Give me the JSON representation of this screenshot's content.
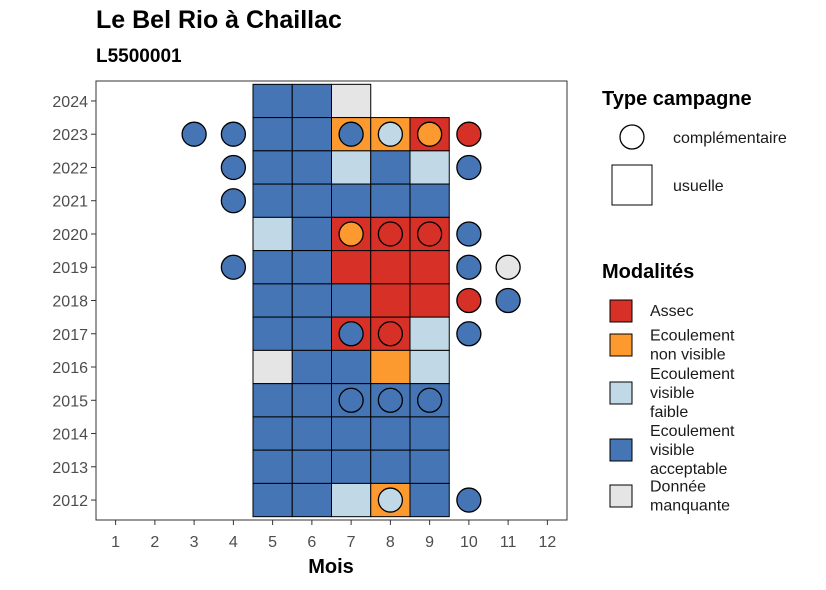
{
  "chart_data": {
    "type": "heatmap",
    "title": "Le Bel Rio à Chaillac",
    "subtitle": "L5500001",
    "xlabel": "Mois",
    "ylabel": "",
    "x_ticks": [
      1,
      2,
      3,
      4,
      5,
      6,
      7,
      8,
      9,
      10,
      11,
      12
    ],
    "y_ticks": [
      2012,
      2013,
      2014,
      2015,
      2016,
      2017,
      2018,
      2019,
      2020,
      2021,
      2022,
      2023,
      2024
    ],
    "xlim": [
      0.5,
      12.5
    ],
    "ylim": [
      2011.4,
      2024.6
    ],
    "grid": false,
    "legend_position": "right",
    "colors": {
      "Assec": "#d73027",
      "Ecoulement non visible": "#fd9a2f",
      "Ecoulement visible faible": "#c1d9e6",
      "Ecoulement visible acceptable": "#4575b4",
      "Donnée manquante": "#e5e5e5"
    },
    "legend_type": {
      "title": "Type campagne",
      "items": [
        {
          "label": "complémentaire",
          "shape": "circle"
        },
        {
          "label": "usuelle",
          "shape": "square"
        }
      ]
    },
    "legend_modalites": {
      "title": "Modalités",
      "items": [
        {
          "key": "Assec",
          "lines": [
            "Assec"
          ]
        },
        {
          "key": "Ecoulement non visible",
          "lines": [
            "Ecoulement",
            "non visible"
          ]
        },
        {
          "key": "Ecoulement visible faible",
          "lines": [
            "Ecoulement",
            "visible",
            "faible"
          ]
        },
        {
          "key": "Ecoulement visible acceptable",
          "lines": [
            "Ecoulement",
            "visible",
            "acceptable"
          ]
        },
        {
          "key": "Donnée manquante",
          "lines": [
            "Donnée",
            "manquante"
          ]
        }
      ]
    },
    "usuelle": [
      {
        "year": 2024,
        "months": [
          5,
          6,
          7
        ],
        "values": [
          "Ecoulement visible acceptable",
          "Ecoulement visible acceptable",
          "Donnée manquante"
        ]
      },
      {
        "year": 2023,
        "months": [
          5,
          6,
          7,
          8,
          9
        ],
        "values": [
          "Ecoulement visible acceptable",
          "Ecoulement visible acceptable",
          "Ecoulement non visible",
          "Ecoulement non visible",
          "Assec"
        ]
      },
      {
        "year": 2022,
        "months": [
          5,
          6,
          7,
          8,
          9
        ],
        "values": [
          "Ecoulement visible acceptable",
          "Ecoulement visible acceptable",
          "Ecoulement visible faible",
          "Ecoulement visible acceptable",
          "Ecoulement visible faible"
        ]
      },
      {
        "year": 2021,
        "months": [
          5,
          6,
          7,
          8,
          9
        ],
        "values": [
          "Ecoulement visible acceptable",
          "Ecoulement visible acceptable",
          "Ecoulement visible acceptable",
          "Ecoulement visible acceptable",
          "Ecoulement visible acceptable"
        ]
      },
      {
        "year": 2020,
        "months": [
          5,
          6,
          7,
          8,
          9
        ],
        "values": [
          "Ecoulement visible faible",
          "Ecoulement visible acceptable",
          "Assec",
          "Assec",
          "Assec"
        ]
      },
      {
        "year": 2019,
        "months": [
          5,
          6,
          7,
          8,
          9
        ],
        "values": [
          "Ecoulement visible acceptable",
          "Ecoulement visible acceptable",
          "Assec",
          "Assec",
          "Assec"
        ]
      },
      {
        "year": 2018,
        "months": [
          5,
          6,
          7,
          8,
          9
        ],
        "values": [
          "Ecoulement visible acceptable",
          "Ecoulement visible acceptable",
          "Ecoulement visible acceptable",
          "Assec",
          "Assec"
        ]
      },
      {
        "year": 2017,
        "months": [
          5,
          6,
          7,
          8,
          9
        ],
        "values": [
          "Ecoulement visible acceptable",
          "Ecoulement visible acceptable",
          "Assec",
          "Assec",
          "Ecoulement visible faible"
        ]
      },
      {
        "year": 2016,
        "months": [
          5,
          6,
          7,
          8,
          9
        ],
        "values": [
          "Donnée manquante",
          "Ecoulement visible acceptable",
          "Ecoulement visible acceptable",
          "Ecoulement non visible",
          "Ecoulement visible faible"
        ]
      },
      {
        "year": 2015,
        "months": [
          5,
          6,
          7,
          8,
          9
        ],
        "values": [
          "Ecoulement visible acceptable",
          "Ecoulement visible acceptable",
          "Ecoulement visible acceptable",
          "Ecoulement visible acceptable",
          "Ecoulement visible acceptable"
        ]
      },
      {
        "year": 2014,
        "months": [
          5,
          6,
          7,
          8,
          9
        ],
        "values": [
          "Ecoulement visible acceptable",
          "Ecoulement visible acceptable",
          "Ecoulement visible acceptable",
          "Ecoulement visible acceptable",
          "Ecoulement visible acceptable"
        ]
      },
      {
        "year": 2013,
        "months": [
          5,
          6,
          7,
          8,
          9
        ],
        "values": [
          "Ecoulement visible acceptable",
          "Ecoulement visible acceptable",
          "Ecoulement visible acceptable",
          "Ecoulement visible acceptable",
          "Ecoulement visible acceptable"
        ]
      },
      {
        "year": 2012,
        "months": [
          5,
          6,
          7,
          8,
          9
        ],
        "values": [
          "Ecoulement visible acceptable",
          "Ecoulement visible acceptable",
          "Ecoulement visible faible",
          "Ecoulement non visible",
          "Ecoulement visible acceptable"
        ]
      }
    ],
    "complementaire": [
      {
        "year": 2023,
        "month": 3,
        "value": "Ecoulement visible acceptable"
      },
      {
        "year": 2023,
        "month": 4,
        "value": "Ecoulement visible acceptable"
      },
      {
        "year": 2023,
        "month": 7,
        "value": "Ecoulement visible acceptable"
      },
      {
        "year": 2023,
        "month": 8,
        "value": "Ecoulement visible faible"
      },
      {
        "year": 2023,
        "month": 9,
        "value": "Ecoulement non visible"
      },
      {
        "year": 2023,
        "month": 10,
        "value": "Assec"
      },
      {
        "year": 2022,
        "month": 4,
        "value": "Ecoulement visible acceptable"
      },
      {
        "year": 2022,
        "month": 10,
        "value": "Ecoulement visible acceptable"
      },
      {
        "year": 2021,
        "month": 4,
        "value": "Ecoulement visible acceptable"
      },
      {
        "year": 2020,
        "month": 7,
        "value": "Ecoulement non visible"
      },
      {
        "year": 2020,
        "month": 8,
        "value": "Assec"
      },
      {
        "year": 2020,
        "month": 9,
        "value": "Assec"
      },
      {
        "year": 2020,
        "month": 10,
        "value": "Ecoulement visible acceptable"
      },
      {
        "year": 2019,
        "month": 4,
        "value": "Ecoulement visible acceptable"
      },
      {
        "year": 2019,
        "month": 10,
        "value": "Ecoulement visible acceptable"
      },
      {
        "year": 2019,
        "month": 11,
        "value": "Donnée manquante"
      },
      {
        "year": 2018,
        "month": 10,
        "value": "Assec"
      },
      {
        "year": 2018,
        "month": 11,
        "value": "Ecoulement visible acceptable"
      },
      {
        "year": 2017,
        "month": 7,
        "value": "Ecoulement visible acceptable"
      },
      {
        "year": 2017,
        "month": 8,
        "value": "Assec"
      },
      {
        "year": 2017,
        "month": 10,
        "value": "Ecoulement visible acceptable"
      },
      {
        "year": 2015,
        "month": 7,
        "value": "Ecoulement visible acceptable"
      },
      {
        "year": 2015,
        "month": 8,
        "value": "Ecoulement visible acceptable"
      },
      {
        "year": 2015,
        "month": 9,
        "value": "Ecoulement visible acceptable"
      },
      {
        "year": 2012,
        "month": 8,
        "value": "Ecoulement visible faible"
      },
      {
        "year": 2012,
        "month": 10,
        "value": "Ecoulement visible acceptable"
      }
    ]
  }
}
